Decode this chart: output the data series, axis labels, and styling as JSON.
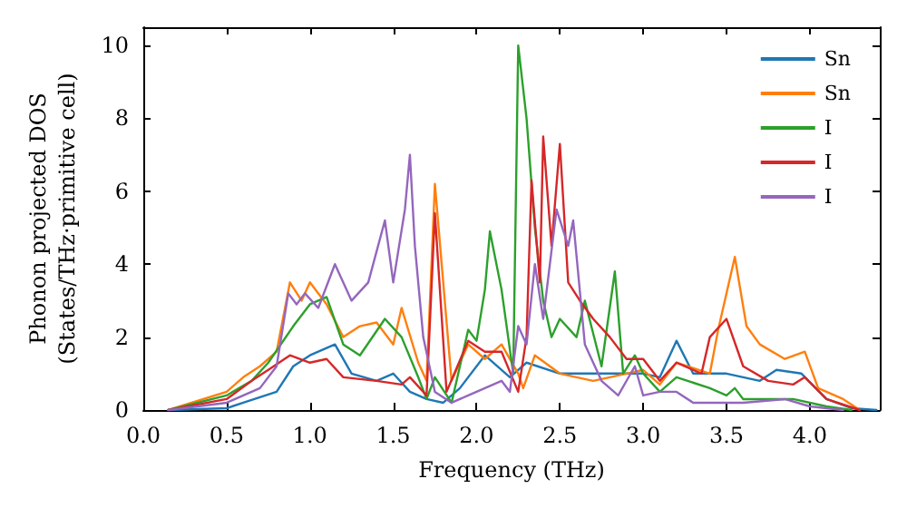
{
  "chart_data": {
    "type": "line",
    "xlabel": "Frequency (THz)",
    "ylabel": "Phonon projected DOS\n(States/THz·primitive cell)",
    "xlim": [
      0,
      4.42
    ],
    "ylim": [
      0,
      10.5
    ],
    "xticks": [
      {
        "value": 0,
        "label": "0.0"
      },
      {
        "value": 0.5,
        "label": "0.5"
      },
      {
        "value": 1,
        "label": "1.0"
      },
      {
        "value": 1.5,
        "label": "1.5"
      },
      {
        "value": 2,
        "label": "2.0"
      },
      {
        "value": 2.5,
        "label": "2.5"
      },
      {
        "value": 3,
        "label": "3.0"
      },
      {
        "value": 3.5,
        "label": "3.5"
      },
      {
        "value": 4,
        "label": "4.0"
      }
    ],
    "yticks": [
      0,
      2,
      4,
      6,
      8,
      10
    ],
    "grid": false,
    "legend": "top right",
    "marker": "none",
    "line_style": "solid",
    "series": [
      {
        "name": "Sn",
        "color": "#1f77b4",
        "x": [
          0.15,
          0.5,
          0.6,
          0.8,
          0.9,
          1.0,
          1.15,
          1.25,
          1.4,
          1.5,
          1.6,
          1.7,
          1.8,
          1.9,
          2.05,
          2.2,
          2.3,
          2.5,
          2.7,
          3.0,
          3.1,
          3.2,
          3.3,
          3.5,
          3.7,
          3.8,
          3.95,
          4.1,
          4.25,
          4.4
        ],
        "values": [
          0,
          0.05,
          0.2,
          0.5,
          1.2,
          1.5,
          1.8,
          1.0,
          0.8,
          1.0,
          0.5,
          0.3,
          0.2,
          0.6,
          1.5,
          0.9,
          1.3,
          1.0,
          1.0,
          1.0,
          0.9,
          1.9,
          1.0,
          1.0,
          0.8,
          1.1,
          1.0,
          0.3,
          0.05,
          0
        ]
      },
      {
        "name": "Sn",
        "color": "#ff7f0e",
        "x": [
          0.15,
          0.5,
          0.6,
          0.7,
          0.8,
          0.88,
          0.95,
          1.0,
          1.1,
          1.2,
          1.3,
          1.4,
          1.5,
          1.55,
          1.65,
          1.7,
          1.75,
          1.85,
          1.95,
          2.05,
          2.15,
          2.25,
          2.28,
          2.35,
          2.5,
          2.7,
          2.9,
          3.0,
          3.1,
          3.2,
          3.4,
          3.45,
          3.55,
          3.62,
          3.7,
          3.85,
          3.97,
          4.05,
          4.2,
          4.3
        ],
        "values": [
          0,
          0.5,
          0.9,
          1.2,
          1.6,
          3.5,
          3.0,
          3.5,
          2.9,
          2.0,
          2.3,
          2.4,
          1.8,
          2.8,
          1.3,
          0.8,
          6.2,
          0.8,
          1.8,
          1.4,
          1.8,
          1.0,
          0.6,
          1.5,
          1.0,
          0.8,
          1.0,
          1.1,
          0.7,
          1.3,
          1.0,
          2.2,
          4.2,
          2.3,
          1.8,
          1.4,
          1.6,
          0.6,
          0.3,
          0
        ]
      },
      {
        "name": "I",
        "color": "#2ca02c",
        "x": [
          0.15,
          0.5,
          0.65,
          0.75,
          0.9,
          1.0,
          1.1,
          1.2,
          1.3,
          1.45,
          1.55,
          1.65,
          1.7,
          1.75,
          1.85,
          1.95,
          2.0,
          2.05,
          2.08,
          2.15,
          2.22,
          2.25,
          2.3,
          2.35,
          2.4,
          2.45,
          2.5,
          2.6,
          2.65,
          2.75,
          2.83,
          2.88,
          2.95,
          3.0,
          3.1,
          3.2,
          3.4,
          3.5,
          3.55,
          3.6,
          3.9,
          4.1,
          4.25
        ],
        "values": [
          0,
          0.4,
          0.8,
          1.3,
          2.3,
          2.9,
          3.1,
          1.8,
          1.5,
          2.5,
          2.0,
          0.9,
          0.3,
          0.9,
          0.2,
          2.2,
          1.9,
          3.3,
          4.9,
          3.3,
          1.0,
          10.0,
          8.0,
          5.0,
          3.0,
          2.0,
          2.5,
          2.0,
          3.0,
          1.2,
          3.8,
          1.0,
          1.5,
          1.0,
          0.5,
          0.9,
          0.6,
          0.4,
          0.6,
          0.3,
          0.3,
          0.1,
          0
        ]
      },
      {
        "name": "I",
        "color": "#d62728",
        "x": [
          0.15,
          0.5,
          0.65,
          0.75,
          0.88,
          1.0,
          1.1,
          1.2,
          1.4,
          1.55,
          1.6,
          1.7,
          1.75,
          1.82,
          1.95,
          2.05,
          2.15,
          2.25,
          2.3,
          2.33,
          2.38,
          2.4,
          2.45,
          2.5,
          2.55,
          2.62,
          2.7,
          2.8,
          2.9,
          3.0,
          3.1,
          3.2,
          3.35,
          3.4,
          3.5,
          3.6,
          3.75,
          3.9,
          3.97,
          4.1,
          4.3
        ],
        "values": [
          0,
          0.3,
          0.8,
          1.1,
          1.5,
          1.3,
          1.4,
          0.9,
          0.8,
          0.7,
          0.9,
          0.4,
          5.4,
          0.5,
          1.9,
          1.6,
          1.6,
          0.5,
          2.0,
          6.3,
          3.5,
          7.5,
          4.5,
          7.3,
          3.5,
          3.0,
          2.5,
          2.0,
          1.4,
          1.4,
          0.8,
          1.3,
          1.0,
          2.0,
          2.5,
          1.2,
          0.8,
          0.7,
          0.9,
          0.3,
          0
        ]
      },
      {
        "name": "I",
        "color": "#9467bd",
        "x": [
          0.15,
          0.5,
          0.7,
          0.8,
          0.87,
          0.92,
          0.97,
          1.05,
          1.15,
          1.25,
          1.35,
          1.45,
          1.5,
          1.57,
          1.6,
          1.63,
          1.68,
          1.75,
          1.85,
          1.95,
          2.05,
          2.15,
          2.2,
          2.25,
          2.3,
          2.35,
          2.4,
          2.48,
          2.55,
          2.58,
          2.65,
          2.75,
          2.85,
          2.95,
          3.0,
          3.1,
          3.2,
          3.3,
          3.6,
          3.85,
          4.0,
          4.2
        ],
        "values": [
          0,
          0.2,
          0.6,
          1.2,
          3.2,
          2.9,
          3.2,
          2.8,
          4.0,
          3.0,
          3.5,
          5.2,
          3.5,
          5.5,
          7.0,
          4.5,
          2.0,
          0.5,
          0.2,
          0.4,
          0.6,
          0.8,
          0.5,
          2.3,
          1.8,
          4.0,
          2.5,
          5.5,
          4.5,
          5.2,
          1.8,
          0.8,
          0.4,
          1.2,
          0.4,
          0.5,
          0.5,
          0.2,
          0.2,
          0.3,
          0.1,
          0
        ]
      }
    ]
  }
}
